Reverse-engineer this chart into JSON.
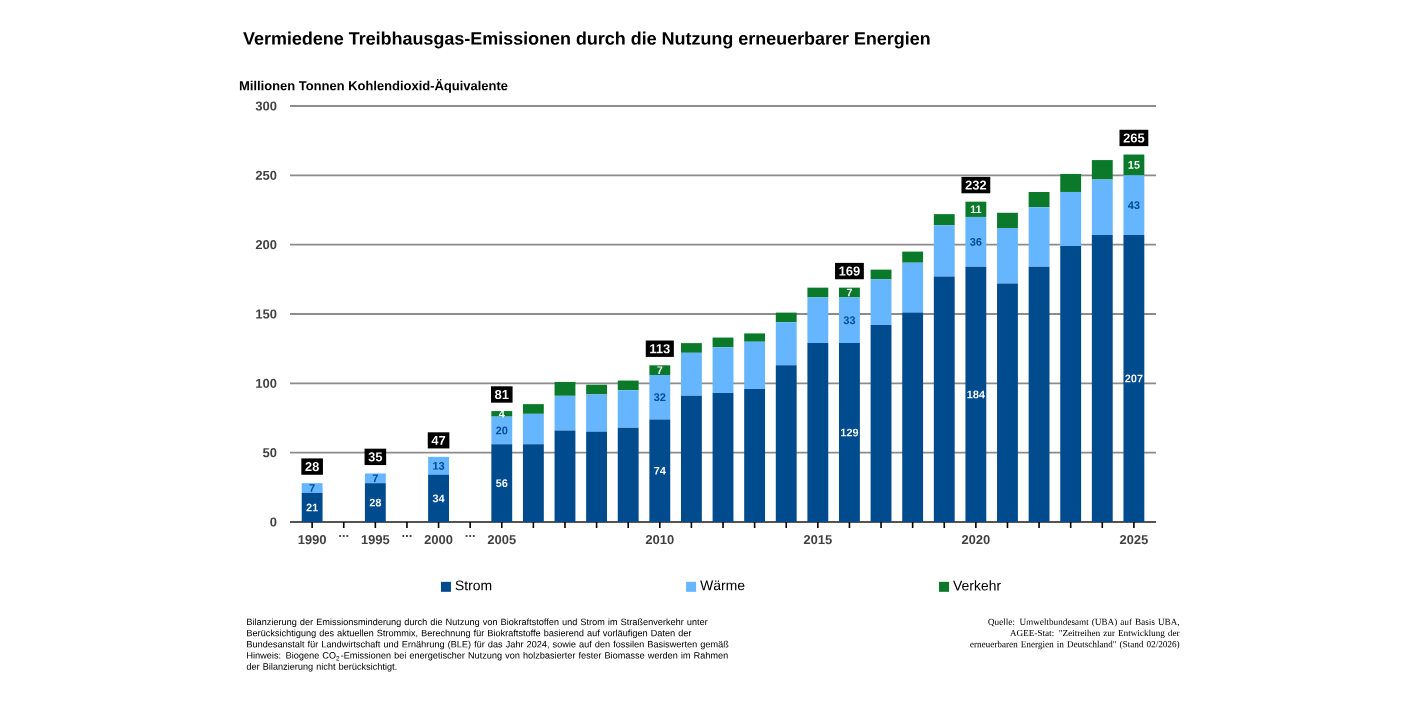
{
  "chart_data": {
    "type": "bar",
    "stacked": true,
    "title": "Vermiedene Treibhausgas-Emissionen durch die Nutzung erneuerbarer Energien",
    "ylabel": "Millionen Tonnen Kohlendioxid-Äquivalente",
    "categories": [
      "1990",
      "...",
      "1995",
      "...",
      "2000",
      "...",
      "2005",
      null,
      null,
      null,
      null,
      "2010",
      null,
      null,
      null,
      null,
      "2015",
      null,
      null,
      null,
      null,
      "2020",
      null,
      null,
      null,
      null,
      "2025"
    ],
    "series": [
      {
        "name": "Strom",
        "color": "#004b8d",
        "values": [
          21,
          null,
          28,
          null,
          34,
          null,
          56,
          56,
          66,
          65,
          68,
          74,
          91,
          93,
          96,
          113,
          129,
          129,
          142,
          151,
          177,
          184,
          172,
          184,
          199,
          207,
          207
        ],
        "value_labels": [
          "21",
          null,
          "28",
          null,
          "34",
          null,
          "56",
          null,
          null,
          null,
          null,
          "74",
          null,
          null,
          null,
          null,
          null,
          "129",
          null,
          null,
          null,
          "184",
          null,
          null,
          null,
          null,
          "207"
        ]
      },
      {
        "name": "Wärme",
        "color": "#66b5ff",
        "values": [
          7,
          null,
          7,
          null,
          13,
          null,
          20,
          22,
          25,
          27,
          27,
          32,
          31,
          33,
          34,
          31,
          33,
          33,
          33,
          36,
          37,
          36,
          40,
          43,
          39,
          40,
          43
        ],
        "value_labels": [
          "7",
          null,
          "7",
          null,
          "13",
          null,
          "20",
          null,
          null,
          null,
          null,
          "32",
          null,
          null,
          null,
          null,
          null,
          "33",
          null,
          null,
          null,
          "36",
          null,
          null,
          null,
          null,
          "43"
        ]
      },
      {
        "name": "Verkehr",
        "color": "#0a7a2a",
        "values": [
          null,
          null,
          null,
          null,
          null,
          null,
          4,
          7,
          10,
          7,
          7,
          7,
          7,
          7,
          6,
          7,
          7,
          7,
          7,
          8,
          8,
          11,
          11,
          11,
          13,
          14,
          15
        ],
        "value_labels": [
          null,
          null,
          null,
          null,
          null,
          null,
          "4",
          null,
          null,
          null,
          null,
          "7",
          null,
          null,
          null,
          null,
          null,
          "7",
          null,
          null,
          null,
          "11",
          null,
          null,
          null,
          null,
          "15"
        ]
      }
    ],
    "totals": [
      "28",
      null,
      "35",
      null,
      "47",
      null,
      "81",
      null,
      null,
      null,
      null,
      "113",
      null,
      null,
      null,
      null,
      null,
      "169",
      null,
      null,
      null,
      "232",
      null,
      null,
      null,
      null,
      "265"
    ],
    "ylim": [
      0,
      300
    ],
    "yticks": [
      0,
      50,
      100,
      150,
      200,
      250,
      300
    ],
    "grid": "y",
    "legend": "bottom",
    "annotations": [
      "Bilanzierung der Emissionsminderung durch die Nutzung von Biokraftstoffen und Strom im Straßenverkehr unter Berücksichtigung des aktuellen Strommix, Berechnung für Biokraftstoffe basierend auf vorläufigen Daten der Bundesanstalt für Landwirtschaft und Ernährung (BLE) für das Jahr 2024, sowie auf den fossilen Basiswerten gemäß Hinweis: Biogene CO$_{2}$-Emissionen bei energetischer Nutzung von holzbasierter fester Biomasse werden im Rahmen der Bilanzierung nicht berücksichtigt.",
      "Quelle: Umweltbundesamt (UBA) auf Basis UBA, AGEE-Stat: \"Zeitreihen zur Entwicklung der erneuerbaren Energien in Deutschland\" (Stand 02/2026)"
    ]
  }
}
